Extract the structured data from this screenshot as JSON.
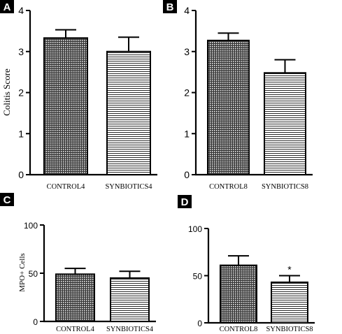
{
  "chart_data": [
    {
      "panel": "A",
      "type": "bar",
      "categories": [
        "CONTROL4",
        "SYNBIOTICS4"
      ],
      "values": [
        3.33,
        3.0
      ],
      "errors": [
        0.2,
        0.35
      ],
      "patterns": [
        "dots",
        "hlines"
      ],
      "ylabel": "Colitis Score",
      "ylim": [
        0,
        4
      ],
      "yticks": [
        "0",
        "1",
        "2",
        "3",
        "4"
      ],
      "grid": false,
      "annotations": [
        "",
        ""
      ]
    },
    {
      "panel": "B",
      "type": "bar",
      "categories": [
        "CONTROL8",
        "SYNBIOTICS8"
      ],
      "values": [
        3.27,
        2.48
      ],
      "errors": [
        0.18,
        0.32
      ],
      "patterns": [
        "dots",
        "hlines"
      ],
      "ylabel": "",
      "ylim": [
        0,
        4
      ],
      "yticks": [
        "0",
        "1",
        "2",
        "3",
        "4"
      ],
      "grid": false,
      "annotations": [
        "",
        ""
      ]
    },
    {
      "panel": "C",
      "type": "bar",
      "categories": [
        "CONTROL4",
        "SYNBIOTICS4"
      ],
      "values": [
        49,
        45
      ],
      "errors": [
        6,
        7
      ],
      "patterns": [
        "dots",
        "hlines"
      ],
      "ylabel": "MPO+ Cells",
      "ylim": [
        0,
        100
      ],
      "yticks": [
        "0",
        "50",
        "100"
      ],
      "grid": false,
      "annotations": [
        "",
        ""
      ]
    },
    {
      "panel": "D",
      "type": "bar",
      "categories": [
        "CONTROL8",
        "SYNBIOTICS8"
      ],
      "values": [
        61,
        43
      ],
      "errors": [
        10,
        7
      ],
      "patterns": [
        "dots",
        "hlines"
      ],
      "ylabel": "",
      "ylim": [
        0,
        100
      ],
      "yticks": [
        "0",
        "50",
        "100"
      ],
      "grid": false,
      "annotations": [
        "",
        "*"
      ]
    }
  ]
}
